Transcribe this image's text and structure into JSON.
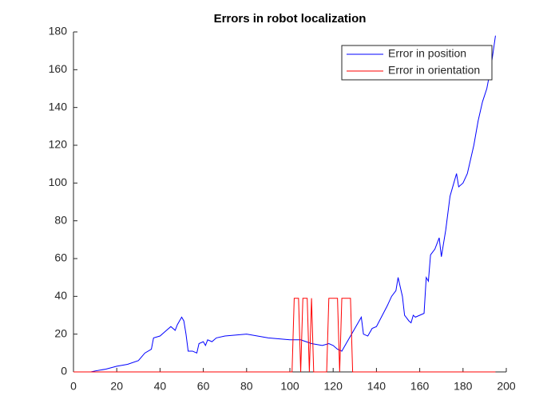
{
  "chart_data": {
    "type": "line",
    "title": "Errors in robot localization",
    "xlim": [
      0,
      200
    ],
    "xticks": [
      0,
      20,
      40,
      60,
      80,
      100,
      120,
      140,
      160,
      180,
      200
    ],
    "ylim": [
      0,
      180
    ],
    "yticks": [
      0,
      20,
      40,
      60,
      80,
      100,
      120,
      140,
      160,
      180
    ],
    "legend": "upper right",
    "series": [
      {
        "name": "Error in position",
        "color": "#0000ff",
        "x": [
          0,
          8,
          10,
          15,
          20,
          25,
          30,
          33,
          36,
          37,
          40,
          43,
          45,
          47,
          48,
          50,
          51,
          52,
          53,
          55,
          57,
          58,
          60,
          61,
          62,
          64,
          66,
          70,
          80,
          90,
          100,
          105,
          110,
          115,
          118,
          120,
          122,
          124,
          126,
          130,
          133,
          134,
          136,
          138,
          140,
          145,
          147,
          149,
          150,
          152,
          153,
          155,
          156,
          157,
          158,
          160,
          162,
          163,
          164,
          165,
          167,
          169,
          170,
          171,
          172,
          174,
          175,
          177,
          178,
          180,
          182,
          185,
          187,
          189,
          191,
          193,
          195
        ],
        "values": [
          0,
          0,
          0.5,
          1.5,
          3,
          4,
          6,
          10,
          12,
          18,
          19,
          22,
          24,
          22,
          25,
          29,
          27,
          20,
          11,
          11,
          10,
          15,
          16,
          14,
          17,
          16,
          18,
          19,
          20,
          18,
          17,
          17,
          15,
          14,
          15,
          14,
          12,
          11,
          15,
          23,
          29,
          20,
          19,
          23,
          24,
          35,
          40,
          43,
          50,
          40,
          30,
          27,
          26,
          30,
          29,
          30,
          31,
          50,
          48,
          62,
          65,
          71,
          61,
          68,
          75,
          93,
          97,
          105,
          98,
          100,
          105,
          120,
          133,
          143,
          150,
          162,
          178
        ]
      },
      {
        "name": "Error in orientation",
        "color": "#ff0000",
        "x": [
          0,
          101,
          102,
          104,
          105,
          106,
          108,
          109,
          110,
          111,
          117,
          118,
          122,
          123,
          124,
          128,
          129,
          195
        ],
        "values": [
          0,
          0,
          39,
          39,
          0,
          39,
          39,
          0,
          39,
          0,
          0,
          39,
          39,
          0,
          39,
          39,
          0,
          0
        ]
      }
    ]
  }
}
